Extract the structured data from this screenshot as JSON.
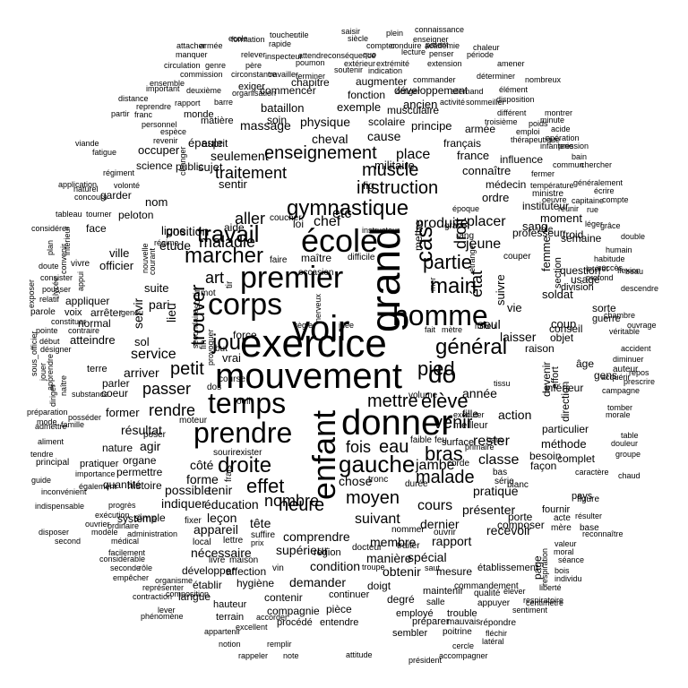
{
  "words": [
    "exercice",
    "mouvement",
    "voir",
    "grand",
    "donner",
    "école",
    "premier",
    "corps",
    "homme",
    "enfant",
    "temps",
    "prendre",
    "gymnastique",
    "gauche",
    "main",
    "do",
    "général",
    "cas",
    "partie",
    "élève",
    "travail",
    "marcher",
    "jour",
    "droite",
    "pied",
    "bras",
    "effet",
    "heure",
    "muscle",
    "instruction",
    "enseignement",
    "moyen",
    "malade",
    "mettre",
    "venir",
    "trouver",
    "fois",
    "eau",
    "place",
    "jeune",
    "état",
    "droit",
    "petit",
    "service",
    "passer",
    "rendre",
    "art",
    "aller",
    "maladie",
    "traitement",
    "nombre",
    "suivant",
    "cours",
    "jambe",
    "classe",
    "action",
    "année",
    "rester",
    "tête",
    "côté",
    "forme",
    "éducation",
    "appareil",
    "chef",
    "etc",
    "produire",
    "placer",
    "position",
    "étude",
    "lieu",
    "membre",
    "manière",
    "spécial",
    "rapport",
    "dernier",
    "présenter",
    "recevoir",
    "pratique",
    "chose",
    "tenir",
    "possible",
    "indiquer",
    "leçon",
    "nécessaire",
    "supérieur",
    "comprendre",
    "condition",
    "demander",
    "obtenir",
    "mesure",
    "degré",
    "employé",
    "pari",
    "servir",
    "parler",
    "arriver",
    "résultat",
    "agir",
    "organe",
    "permettre",
    "former",
    "cheval",
    "physique",
    "cause",
    "militaire",
    "français",
    "france",
    "exemple",
    "massage",
    "seulement",
    "sujet",
    "public",
    "science",
    "esprit",
    "épaule",
    "occuper",
    "sentir",
    "loi",
    "maître",
    "fig",
    "seul",
    "laisser",
    "raison",
    "conseil",
    "vie",
    "suivre",
    "professeur",
    "sang",
    "instituteur",
    "moment",
    "semaine",
    "ordre",
    "médecin",
    "connaître",
    "influence",
    "principe",
    "armée",
    "scolaire",
    "musculaire",
    "ancien",
    "développement",
    "augmenter",
    "commencer",
    "bataillon",
    "soin",
    "fonction",
    "chapitre",
    "exiger",
    "matière",
    "monde",
    "nom",
    "ligne",
    "aide",
    "simple",
    "système",
    "occasion",
    "mettre",
    "mot",
    "suite",
    "ville",
    "officier",
    "face",
    "peloton",
    "garder",
    "principal",
    "pratiquer",
    "quantité",
    "histoire",
    "nature",
    "coeur",
    "terre",
    "atteindre",
    "appliquer",
    "arrêter",
    "normal",
    "voix",
    "vivre",
    "parole",
    "force",
    "fille",
    "tissu",
    "milieu",
    "fait",
    "mètre",
    "coup",
    "objet",
    "femme",
    "section",
    "question",
    "usage",
    "soldat",
    "froid",
    "division",
    "guerre",
    "sorte",
    "âge",
    "gens",
    "auteur",
    "effort",
    "devenir",
    "direction",
    "inférieur",
    "méthode",
    "particulier",
    "besoin",
    "façon",
    "complet",
    "pays",
    "figure",
    "fournir",
    "acte",
    "mère",
    "base",
    "composer",
    "porte",
    "page",
    "établissement",
    "maintenir",
    "continuer",
    "contenir",
    "compagnie",
    "développer",
    "affection",
    "hygiène",
    "établir",
    "langue",
    "hauteur",
    "terrain",
    "procédé",
    "entendre",
    "pièce",
    "sembler",
    "préparer",
    "trouble",
    "mauvais",
    "poitrine",
    "répondre",
    "appuyer",
    "qualité",
    "doigt",
    "commandement",
    "salle",
    "région",
    "troupe",
    "saut",
    "vin",
    "prix",
    "local",
    "lettre",
    "suffire",
    "fixer",
    "livre",
    "maison",
    "ouvrir",
    "nommer",
    "traiter",
    "docteur",
    "corde",
    "bas",
    "série",
    "feu",
    "faible",
    "durée",
    "tronc",
    "banc",
    "rang",
    "blanc",
    "couper",
    "sol",
    "grave",
    "difficile",
    "but",
    "dos",
    "fin",
    "nerveux",
    "idée",
    "règle",
    "surface",
    "volume",
    "coucher",
    "faire",
    "tir",
    "sortir",
    "oeil",
    "poser",
    "moteur",
    "sourire",
    "exister",
    "frais",
    "ecole",
    "toucher",
    "utile",
    "rapide",
    "saisir",
    "plein",
    "connaissance",
    "formation",
    "siècle",
    "enseigner",
    "compter",
    "conduire",
    "académie",
    "parent",
    "chaleur",
    "attacher",
    "armée",
    "manquer",
    "relever",
    "inspecteur",
    "attendre",
    "conséquence",
    "quo",
    "lecture",
    "penser",
    "période",
    "circulation",
    "genre",
    "père",
    "poumon",
    "extérieur",
    "extrémité",
    "extension",
    "amener",
    "ensemble",
    "commission",
    "circonstance",
    "travailler",
    "terminer",
    "soutenir",
    "indication",
    "commander",
    "déterminer",
    "nombreux",
    "important",
    "deuxième",
    "organisation",
    "obliger",
    "allemand",
    "élément",
    "distance",
    "reprendre",
    "rapport",
    "barre",
    "disposition",
    "sommeiller",
    "activité",
    "différent",
    "montrer",
    "partir",
    "franc",
    "personnel",
    "espèce",
    "revenir",
    "troisième",
    "emploi",
    "minute",
    "acide",
    "poids",
    "opération",
    "pression",
    "viande",
    "fatigue",
    "changer",
    "thérapeutique",
    "infanterie",
    "bain",
    "chercher",
    "commun",
    "fermer",
    "température",
    "généralement",
    "régiment",
    "volonté",
    "ministre",
    "écrire",
    "capitaine",
    "compte",
    "naturel",
    "application",
    "concours",
    "tableau",
    "tourner",
    "époque",
    "oeuvre",
    "réunir",
    "rue",
    "instructeur",
    "vole",
    "léger",
    "grâce",
    "double",
    "humain",
    "succès",
    "flexion",
    "habitude",
    "beau",
    "intérêt",
    "profond",
    "descendre",
    "chambre",
    "véritable",
    "accident",
    "ouvrage",
    "diminuer",
    "repos",
    "campagne",
    "prescrire",
    "acquérir",
    "tomber",
    "morale",
    "table",
    "douleur",
    "groupe",
    "chaud",
    "caractère",
    "résulter",
    "reconnaître",
    "valeur",
    "moral",
    "séance",
    "bois",
    "individu",
    "liberté",
    "respiration",
    "élever",
    "respiratoire",
    "centimètre",
    "sentiment",
    "fléchir",
    "latéral",
    "cercle",
    "accompagner",
    "président",
    "attitude",
    "note",
    "rappeler",
    "remplir",
    "notion",
    "excellent",
    "accorder",
    "appartenir",
    "lever",
    "phénomène",
    "composition",
    "contraction",
    "organisme",
    "représenter",
    "seconde",
    "rôle",
    "empêcher",
    "considérable",
    "facilement",
    "second",
    "disposer",
    "médical",
    "administration",
    "modèle",
    "ordinaire",
    "exécution",
    "progrès",
    "ouvrier",
    "indispensable",
    "inconvénient",
    "guide",
    "également",
    "importance",
    "tendre",
    "aliment",
    "famille",
    "admettre",
    "mode",
    "préparation",
    "posséder",
    "sous_officier",
    "jouer",
    "apprendre",
    "substance",
    "naître",
    "diriger",
    "désigner",
    "début",
    "pointe",
    "contraire",
    "constituer",
    "relatif",
    "pousser",
    "consister",
    "doute",
    "exposer",
    "plan",
    "considérer",
    "convenir",
    "intérieur",
    "lycée",
    "appui",
    "genou",
    "régime",
    "nouvelle",
    "courant",
    "secondaire",
    "étranger",
    "mer",
    "provoquer",
    "primaire",
    "meilleur",
    "vrai",
    "course",
    "exécuter",
    "offrir",
    "long",
    "dépendre",
    "rôle",
    "combat",
    "sorte",
    "manuel",
    "exercer",
    "arme",
    "fer",
    "iv",
    "os"
  ]
}
